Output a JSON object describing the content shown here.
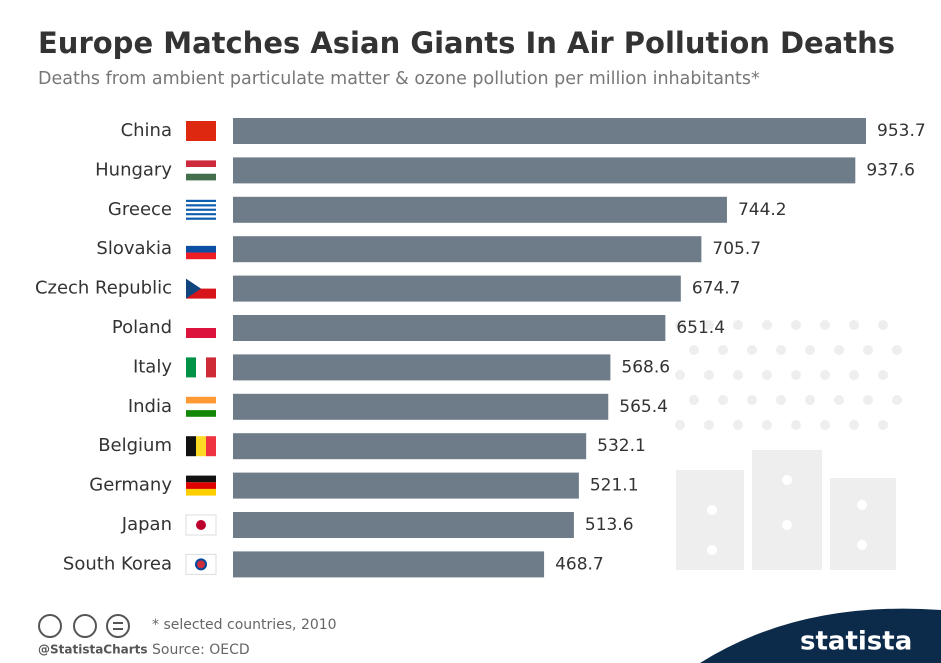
{
  "chart_data": {
    "type": "bar",
    "orientation": "horizontal",
    "title": "Europe Matches Asian Giants In Air Pollution Deaths",
    "subtitle": "Deaths from ambient particulate matter & ozone pollution per million inhabitants*",
    "categories": [
      "China",
      "Hungary",
      "Greece",
      "Slovakia",
      "Czech Republic",
      "Poland",
      "Italy",
      "India",
      "Belgium",
      "Germany",
      "Japan",
      "South Korea"
    ],
    "values": [
      953.7,
      937.6,
      744.2,
      705.7,
      674.7,
      651.4,
      568.6,
      565.4,
      532.1,
      521.1,
      513.6,
      468.7
    ],
    "color": "#6e7c89",
    "footnote": "* selected countries, 2010",
    "source": "Source: OECD",
    "handle": "@StatistaCharts",
    "brand": "statista"
  }
}
